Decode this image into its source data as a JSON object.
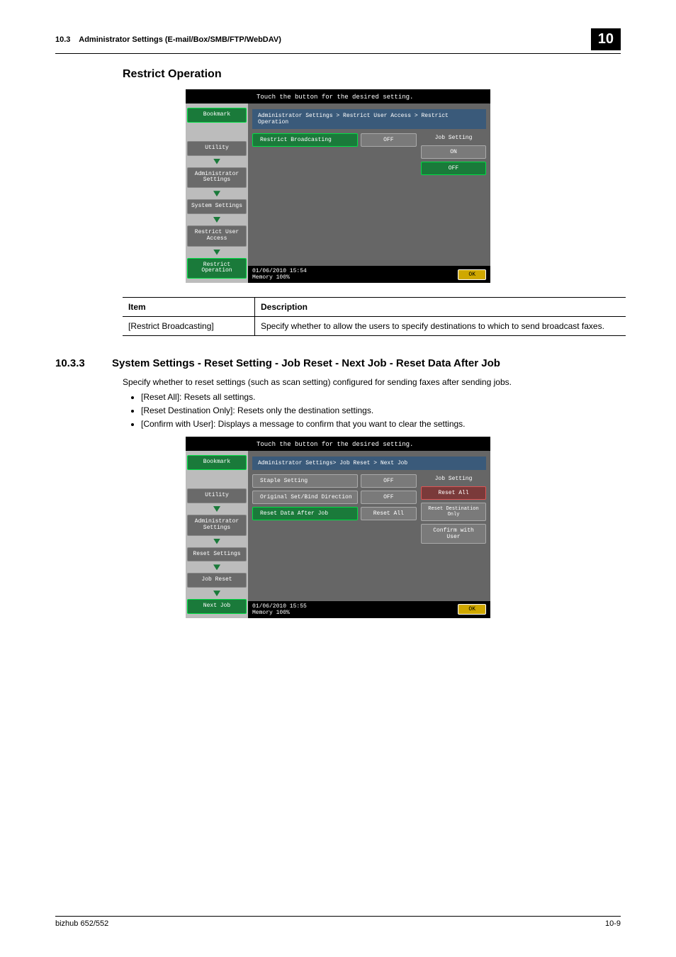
{
  "header": {
    "section_num": "10.3",
    "section_title": "Administrator Settings (E-mail/Box/SMB/FTP/WebDAV)",
    "page_badge": "10"
  },
  "section1": {
    "title": "Restrict Operation",
    "screenshot": {
      "top_instruction": "Touch the button for the desired setting.",
      "breadcrumb": "Administrator Settings > Restrict User Access > Restrict Operation",
      "sidebar": {
        "bookmark": "Bookmark",
        "utility": "Utility",
        "admin": "Administrator Settings",
        "sys": "System Settings",
        "restrict_access": "Restrict User Access",
        "restrict_op": "Restrict Operation"
      },
      "rows": {
        "broadcast_label": "Restrict Broadcasting",
        "broadcast_value": "OFF"
      },
      "right": {
        "head": "Job Setting",
        "on": "ON",
        "off": "OFF"
      },
      "footer": {
        "datetime": "01/06/2010   15:54",
        "memory": "Memory        100%",
        "ok": "OK"
      }
    },
    "table": {
      "head_item": "Item",
      "head_desc": "Description",
      "row1_item": "[Restrict Broadcasting]",
      "row1_desc": "Specify whether to allow the users to specify destinations to which to send broadcast faxes."
    }
  },
  "section2": {
    "num": "10.3.3",
    "title": "System Settings - Reset Setting - Job Reset - Next Job - Reset Data After Job",
    "intro": "Specify whether to reset settings (such as scan setting) configured for sending faxes after sending jobs.",
    "bullet1": "[Reset All]: Resets all settings.",
    "bullet2": "[Reset Destination Only]: Resets only the destination settings.",
    "bullet3": "[Confirm with User]: Displays a message to confirm that you want to clear the settings.",
    "screenshot": {
      "top_instruction": "Touch the button for the desired setting.",
      "breadcrumb": "Administrator Settings> Job Reset > Next Job",
      "sidebar": {
        "bookmark": "Bookmark",
        "utility": "Utility",
        "admin": "Administrator Settings",
        "reset": "Reset Settings",
        "job_reset": "Job Reset",
        "next_job": "Next Job"
      },
      "rows": {
        "staple_label": "Staple Setting",
        "staple_value": "OFF",
        "bind_label": "Original Set/Bind Direction",
        "bind_value": "OFF",
        "resetdata_label": "Reset Data After Job",
        "resetdata_value": "Reset All"
      },
      "right": {
        "head": "Job Setting",
        "reset_all": "Reset All",
        "reset_dest": "Reset Destination Only",
        "confirm": "Confirm with User"
      },
      "footer": {
        "datetime": "01/06/2010   15:55",
        "memory": "Memory        100%",
        "ok": "OK"
      }
    }
  },
  "footer": {
    "left": "bizhub 652/552",
    "right": "10-9"
  }
}
